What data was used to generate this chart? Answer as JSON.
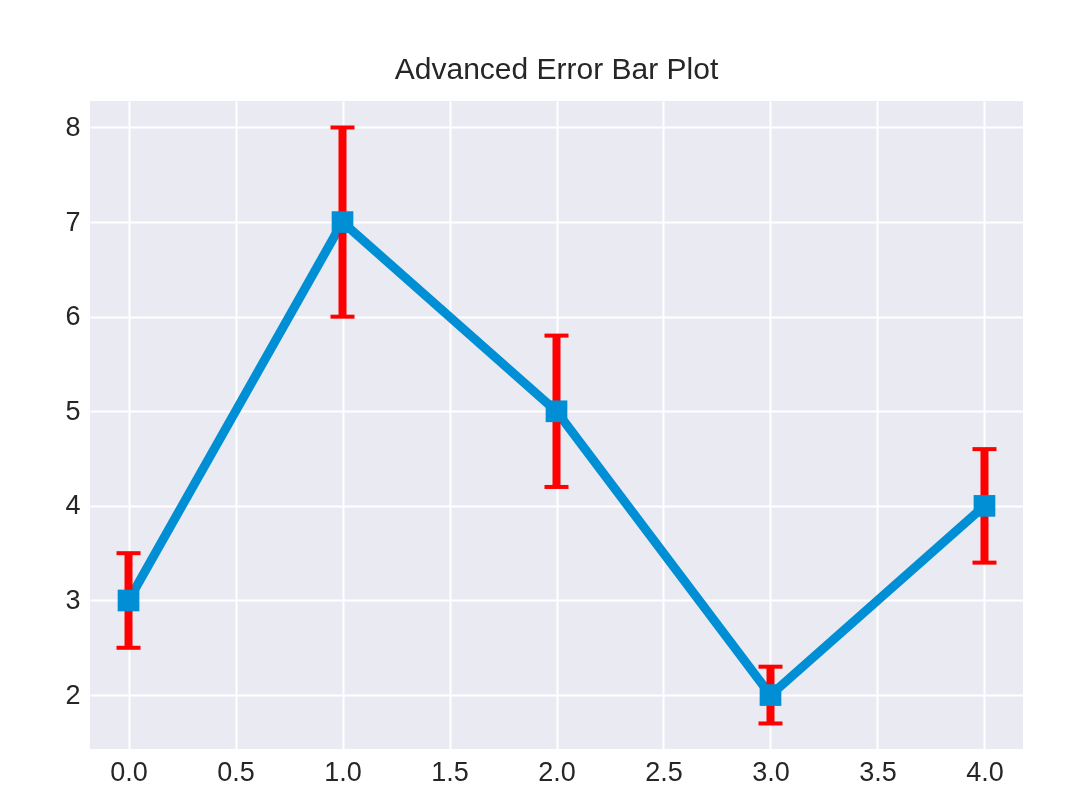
{
  "chart_data": {
    "type": "line",
    "title": "Advanced Error Bar Plot",
    "x": [
      0,
      1,
      2,
      3,
      4
    ],
    "values": [
      3,
      7,
      5,
      2,
      4
    ],
    "errors": [
      0.5,
      1,
      0.8,
      0.3,
      0.6
    ],
    "color": "#008fd5",
    "xlim": [
      -0.18,
      4.18
    ],
    "xticks": [
      {
        "value": 0,
        "label": "0.0"
      },
      0.5,
      {
        "value": 1,
        "label": "1.0"
      },
      1.5,
      {
        "value": 2,
        "label": "2.0"
      },
      2.5,
      {
        "value": 3,
        "label": "3.0"
      },
      3.5,
      {
        "value": 4,
        "label": "4.0"
      }
    ],
    "ylim": [
      1.43,
      8.28
    ],
    "yticks": [
      2,
      3,
      4,
      5,
      6,
      7,
      8
    ],
    "grid": true,
    "marker": "square",
    "line_style": "solid"
  }
}
